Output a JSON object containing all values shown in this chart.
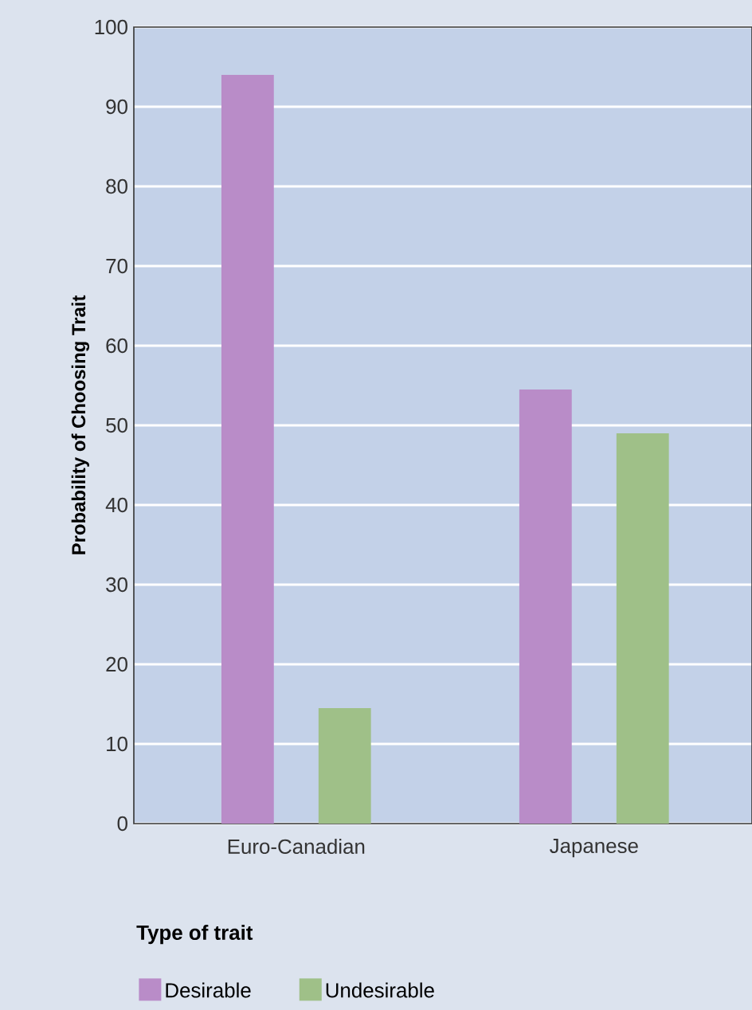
{
  "chart_data": {
    "type": "bar",
    "ylabel": "Probability of Choosing Trait",
    "legend_title": "Type of trait",
    "categories": [
      "Euro-Canadian",
      "Japanese"
    ],
    "series": [
      {
        "name": "Desirable",
        "color": "#b98cc8",
        "values": [
          94,
          54.5
        ]
      },
      {
        "name": "Undesirable",
        "color": "#9fc088",
        "values": [
          14.5,
          49
        ]
      }
    ],
    "ylim": [
      0,
      100
    ],
    "yticks": [
      0,
      10,
      20,
      30,
      40,
      50,
      60,
      70,
      80,
      90,
      100
    ],
    "grid": "y",
    "legend": "bottom left"
  }
}
